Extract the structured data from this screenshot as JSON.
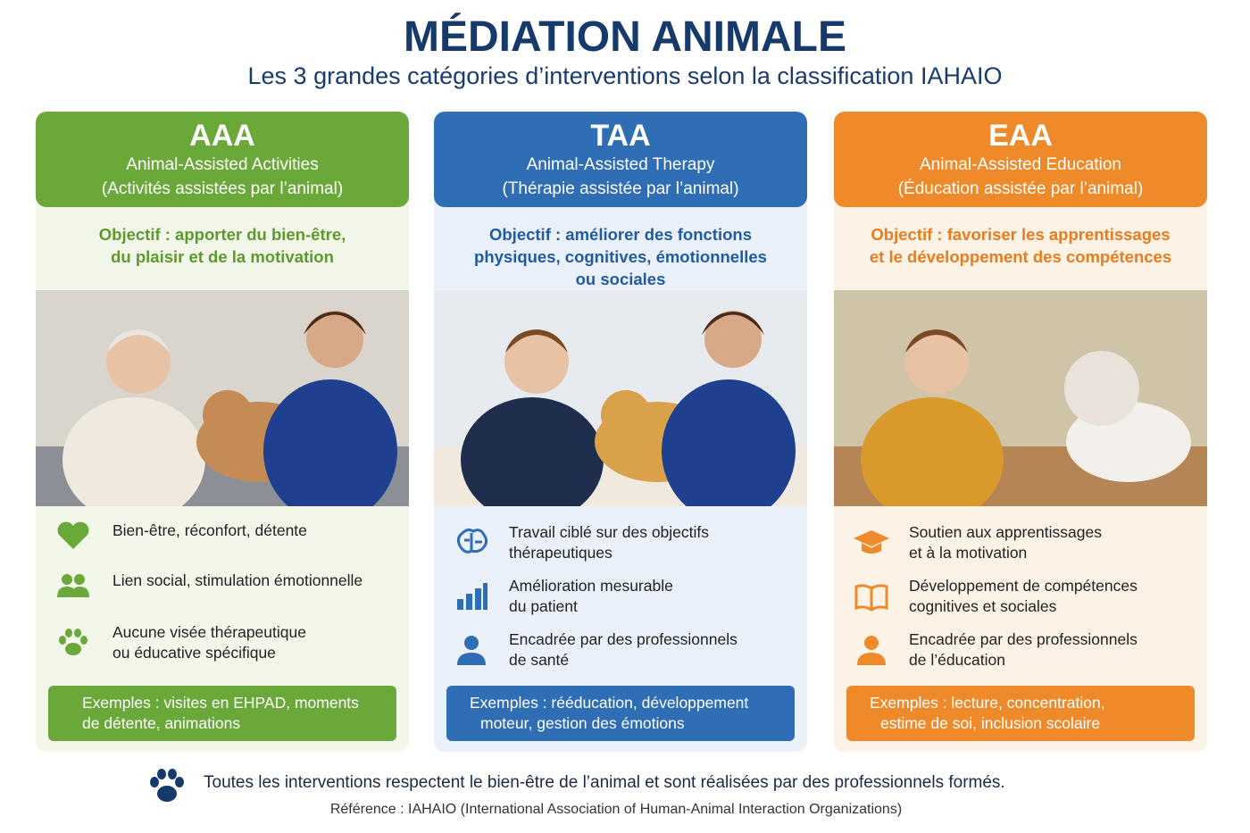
{
  "header": {
    "title": "MÉDIATION ANIMALE",
    "subtitle": "Les 3 grandes catégories d’interventions selon la classification IAHAIO"
  },
  "cards": [
    {
      "code": "AAA",
      "name": "Animal-Assisted Activities",
      "translation": "(Activités assistées par l’animal)",
      "objective": [
        "Objectif : apporter du bien-être,",
        "du plaisir et de la motivation"
      ],
      "items": [
        [
          "Bien-être, réconfort, détente"
        ],
        [
          "Lien social, stimulation émotionnelle"
        ],
        [
          "Aucune visée thérapeutique",
          "ou éducative spécifique"
        ]
      ],
      "examples": [
        "Exemples : visites en EHPAD, moments",
        "de détente, animations"
      ]
    },
    {
      "code": "TAA",
      "name": "Animal-Assisted Therapy",
      "translation": "(Thérapie assistée par l’animal)",
      "objective": [
        "Objectif : améliorer des fonctions",
        "physiques, cognitives, émotionnelles",
        "ou sociales"
      ],
      "items": [
        [
          "Travail ciblé sur des objectifs",
          "thérapeutiques"
        ],
        [
          "Amélioration mesurable",
          "du patient"
        ],
        [
          "Encadrée par des professionnels",
          "de santé"
        ]
      ],
      "examples": [
        "Exemples : rééducation, développement",
        "moteur, gestion des émotions"
      ]
    },
    {
      "code": "EAA",
      "name": "Animal-Assisted Education",
      "translation": "(Éducation assistée par l’animal)",
      "objective": [
        "Objectif : favoriser les apprentissages",
        "et le développement des compétences"
      ],
      "items": [
        [
          "Soutien aux apprentissages",
          "et à la motivation"
        ],
        [
          "Développement de compétences",
          "cognitives et sociales"
        ],
        [
          "Encadrée par des professionnels",
          "de l’éducation"
        ]
      ],
      "examples": [
        "Exemples : lecture, concentration,",
        "estime de soi, inclusion scolaire"
      ]
    }
  ],
  "footer": {
    "note": "Toutes les interventions respectent le bien-être de l’animal et sont réalisées par des professionnels formés.",
    "reference": "Référence : IAHAIO (International Association of Human-Animal Interaction Organizations)"
  }
}
